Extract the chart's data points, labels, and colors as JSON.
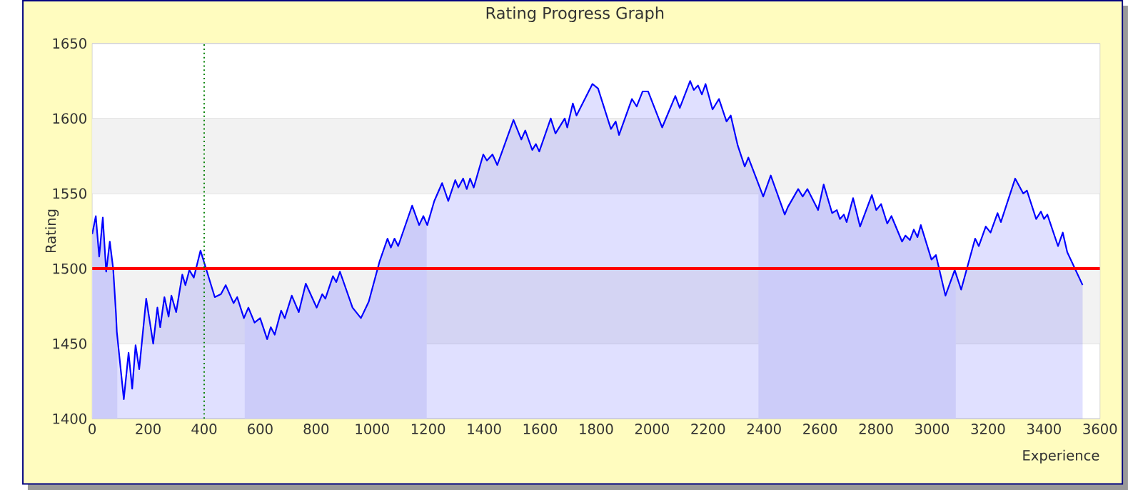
{
  "chart_data": {
    "type": "area",
    "title": "Rating Progress Graph",
    "xlabel": "Experience",
    "ylabel": "Rating",
    "xlim": [
      0,
      3600
    ],
    "ylim": [
      1400,
      1650
    ],
    "xticks": [
      0,
      200,
      400,
      600,
      800,
      1000,
      1200,
      1400,
      1600,
      1800,
      2000,
      2200,
      2400,
      2600,
      2800,
      3000,
      3200,
      3400,
      3600
    ],
    "yticks": [
      1400,
      1450,
      1500,
      1550,
      1600,
      1650
    ],
    "grid": "y",
    "x": [
      0,
      13,
      25,
      38,
      50,
      63,
      75,
      85,
      88,
      113,
      130,
      143,
      155,
      168,
      193,
      218,
      233,
      243,
      258,
      273,
      283,
      300,
      322,
      333,
      347,
      363,
      387,
      410,
      438,
      460,
      477,
      505,
      518,
      542,
      558,
      580,
      600,
      625,
      638,
      652,
      675,
      688,
      713,
      738,
      763,
      802,
      822,
      833,
      860,
      872,
      885,
      930,
      960,
      988,
      1027,
      1055,
      1067,
      1080,
      1093,
      1143,
      1168,
      1183,
      1197,
      1222,
      1250,
      1272,
      1297,
      1308,
      1325,
      1338,
      1350,
      1363,
      1397,
      1410,
      1430,
      1447,
      1505,
      1533,
      1547,
      1572,
      1585,
      1597,
      1638,
      1655,
      1688,
      1697,
      1717,
      1730,
      1787,
      1807,
      1853,
      1870,
      1882,
      1928,
      1945,
      1966,
      1986,
      2036,
      2083,
      2099,
      2136,
      2149,
      2164,
      2178,
      2191,
      2216,
      2239,
      2266,
      2281,
      2306,
      2331,
      2344,
      2397,
      2424,
      2474,
      2485,
      2522,
      2538,
      2555,
      2593,
      2613,
      2643,
      2660,
      2671,
      2685,
      2695,
      2718,
      2743,
      2785,
      2801,
      2818,
      2840,
      2855,
      2893,
      2905,
      2921,
      2935,
      2948,
      2960,
      2998,
      3014,
      3048,
      3081,
      3104,
      3154,
      3167,
      3192,
      3209,
      3234,
      3246,
      3297,
      3326,
      3339,
      3372,
      3389,
      3400,
      3412,
      3450,
      3467,
      3483,
      3538
    ],
    "series": [
      {
        "color": "#0000ff",
        "values": [
          1523,
          1535,
          1508,
          1534,
          1498,
          1518,
          1500,
          1470,
          1458,
          1413,
          1444,
          1420,
          1449,
          1433,
          1480,
          1450,
          1474,
          1461,
          1481,
          1468,
          1482,
          1471,
          1496,
          1489,
          1499,
          1494,
          1512,
          1498,
          1481,
          1483,
          1489,
          1477,
          1481,
          1467,
          1474,
          1464,
          1467,
          1453,
          1461,
          1456,
          1472,
          1467,
          1482,
          1471,
          1490,
          1474,
          1483,
          1480,
          1495,
          1491,
          1498,
          1474,
          1467,
          1478,
          1505,
          1520,
          1514,
          1520,
          1515,
          1542,
          1529,
          1535,
          1529,
          1545,
          1557,
          1545,
          1559,
          1554,
          1560,
          1553,
          1560,
          1554,
          1576,
          1572,
          1576,
          1569,
          1599,
          1586,
          1592,
          1579,
          1583,
          1578,
          1600,
          1590,
          1600,
          1594,
          1610,
          1602,
          1623,
          1620,
          1593,
          1598,
          1589,
          1613,
          1608,
          1618,
          1618,
          1594,
          1615,
          1607,
          1625,
          1619,
          1622,
          1616,
          1623,
          1606,
          1613,
          1598,
          1602,
          1582,
          1568,
          1574,
          1548,
          1562,
          1536,
          1541,
          1553,
          1548,
          1553,
          1539,
          1556,
          1537,
          1539,
          1533,
          1536,
          1531,
          1547,
          1528,
          1549,
          1539,
          1543,
          1530,
          1535,
          1518,
          1522,
          1519,
          1526,
          1521,
          1529,
          1506,
          1509,
          1482,
          1499,
          1486,
          1520,
          1515,
          1528,
          1524,
          1537,
          1531,
          1560,
          1550,
          1552,
          1533,
          1538,
          1533,
          1536,
          1515,
          1524,
          1511,
          1489
        ]
      }
    ],
    "ref_lines": [
      {
        "axis": "y",
        "value": 1500,
        "color": "#ff0000",
        "line_style": "solid"
      },
      {
        "axis": "x",
        "value": 400,
        "color": "#008000",
        "line_style": "dotted"
      }
    ],
    "bands": [
      {
        "axis": "y",
        "from": 1450,
        "to": 1500,
        "color": "#f2f2f2"
      },
      {
        "axis": "y",
        "from": 1550,
        "to": 1600,
        "color": "#f2f2f2"
      },
      {
        "axis": "x",
        "from": 0,
        "to": 90,
        "color": "#e9e9f9"
      },
      {
        "axis": "x",
        "from": 545,
        "to": 1195,
        "color": "#e9e9f9"
      },
      {
        "axis": "x",
        "from": 2380,
        "to": 3085,
        "color": "#e9e9f9"
      }
    ]
  }
}
